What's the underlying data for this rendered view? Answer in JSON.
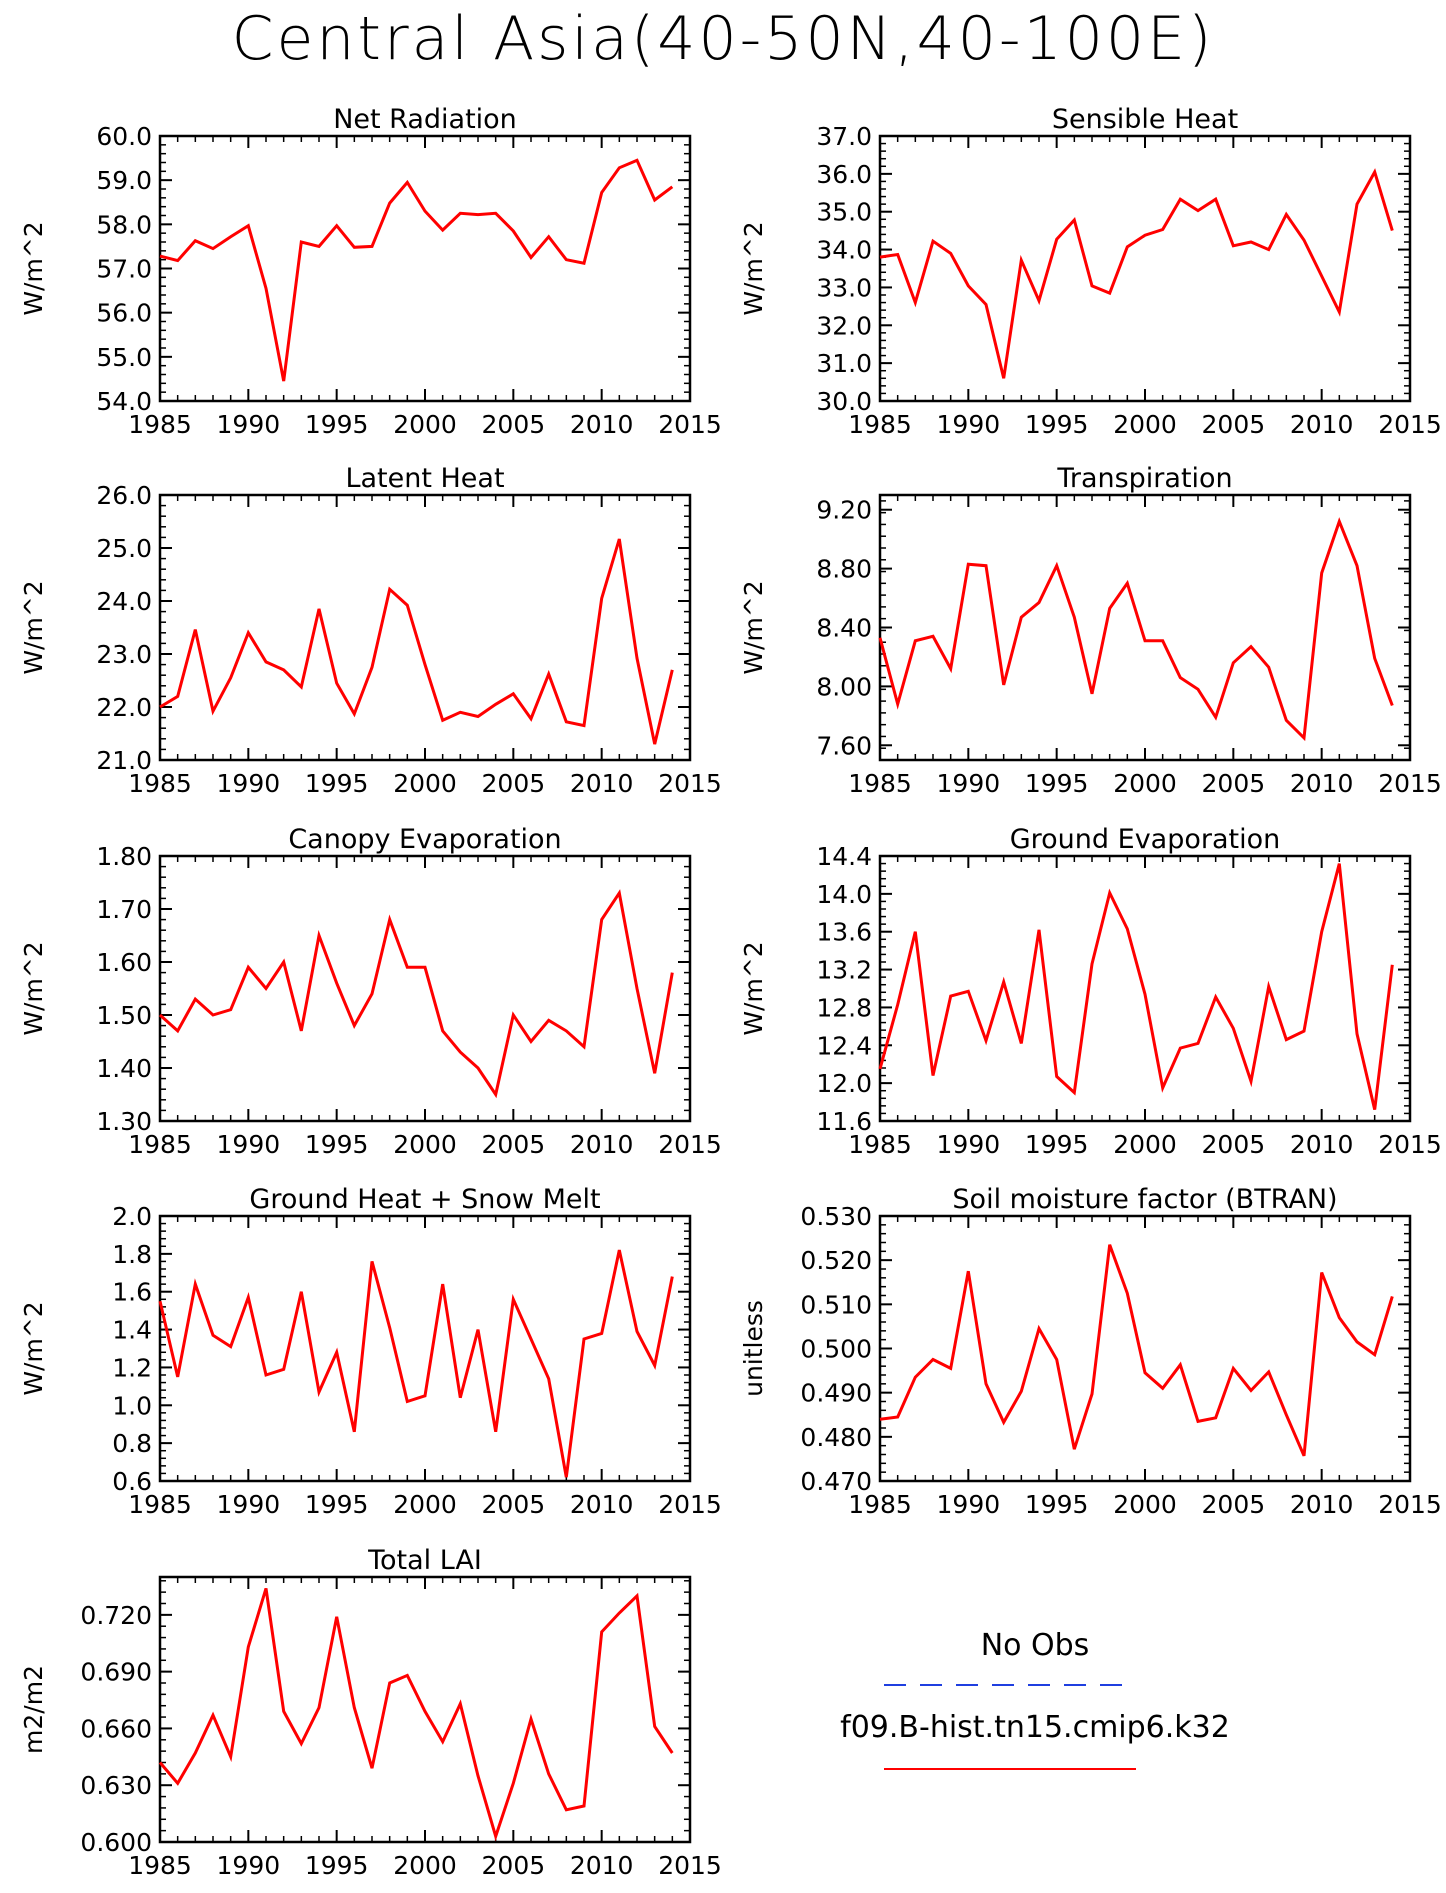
{
  "title": "Central Asia(40-50N,40-100E)",
  "legend": {
    "obs_label": "No Obs",
    "obs_color": "#1f3fe0",
    "model_label": "f09.B-hist.tn15.cmip6.k32",
    "model_color": "#ff0000"
  },
  "line_color": "#ff0000",
  "chart_data": [
    {
      "type": "line",
      "title": "Net Radiation",
      "ylabel": "W/m^2",
      "xlim": [
        1985,
        2015
      ],
      "ylim": [
        54.0,
        60.0
      ],
      "xticks": [
        "1985",
        "1990",
        "1995",
        "2000",
        "2005",
        "2010",
        "2015"
      ],
      "yticks": [
        "54.0",
        "55.0",
        "56.0",
        "57.0",
        "58.0",
        "59.0",
        "60.0"
      ],
      "x": [
        1985,
        1986,
        1987,
        1988,
        1989,
        1990,
        1991,
        1992,
        1993,
        1994,
        1995,
        1996,
        1997,
        1998,
        1999,
        2000,
        2001,
        2002,
        2003,
        2004,
        2005,
        2006,
        2007,
        2008,
        2009,
        2010,
        2011,
        2012,
        2013,
        2014
      ],
      "series": [
        {
          "values": [
            57.28,
            57.18,
            57.63,
            57.45,
            57.72,
            57.97,
            56.55,
            54.45,
            57.6,
            57.5,
            57.97,
            57.48,
            57.5,
            58.48,
            58.95,
            58.3,
            57.87,
            58.25,
            58.22,
            58.25,
            57.85,
            57.25,
            57.72,
            57.2,
            57.12,
            58.72,
            59.28,
            59.45,
            58.55,
            58.85
          ]
        }
      ]
    },
    {
      "type": "line",
      "title": "Sensible Heat",
      "ylabel": "W/m^2",
      "xlim": [
        1985,
        2015
      ],
      "ylim": [
        30.0,
        37.0
      ],
      "xticks": [
        "1985",
        "1990",
        "1995",
        "2000",
        "2005",
        "2010",
        "2015"
      ],
      "yticks": [
        "30.0",
        "31.0",
        "32.0",
        "33.0",
        "34.0",
        "35.0",
        "36.0",
        "37.0"
      ],
      "x": [
        1985,
        1986,
        1987,
        1988,
        1989,
        1990,
        1991,
        1992,
        1993,
        1994,
        1995,
        1996,
        1997,
        1998,
        1999,
        2000,
        2001,
        2002,
        2003,
        2004,
        2005,
        2006,
        2007,
        2008,
        2009,
        2010,
        2011,
        2012,
        2013,
        2014
      ],
      "series": [
        {
          "values": [
            33.8,
            33.87,
            32.6,
            34.22,
            33.9,
            33.04,
            32.55,
            30.6,
            33.72,
            32.65,
            34.27,
            34.78,
            33.04,
            32.85,
            34.07,
            34.38,
            34.53,
            35.33,
            35.03,
            35.33,
            34.1,
            34.2,
            34.0,
            34.93,
            34.25,
            33.3,
            32.35,
            35.2,
            36.05,
            34.5
          ]
        }
      ]
    },
    {
      "type": "line",
      "title": "Latent Heat",
      "ylabel": "W/m^2",
      "xlim": [
        1985,
        2015
      ],
      "ylim": [
        21.0,
        26.0
      ],
      "xticks": [
        "1985",
        "1990",
        "1995",
        "2000",
        "2005",
        "2010",
        "2015"
      ],
      "yticks": [
        "21.0",
        "22.0",
        "23.0",
        "24.0",
        "25.0",
        "26.0"
      ],
      "x": [
        1985,
        1986,
        1987,
        1988,
        1989,
        1990,
        1991,
        1992,
        1993,
        1994,
        1995,
        1996,
        1997,
        1998,
        1999,
        2000,
        2001,
        2002,
        2003,
        2004,
        2005,
        2006,
        2007,
        2008,
        2009,
        2010,
        2011,
        2012,
        2013,
        2014
      ],
      "series": [
        {
          "values": [
            22.0,
            22.2,
            23.46,
            21.92,
            22.55,
            23.4,
            22.85,
            22.7,
            22.38,
            23.85,
            22.45,
            21.87,
            22.75,
            24.22,
            23.92,
            22.8,
            21.75,
            21.9,
            21.82,
            22.05,
            22.25,
            21.78,
            22.62,
            21.72,
            21.65,
            24.05,
            25.17,
            22.92,
            21.3,
            22.7
          ]
        }
      ]
    },
    {
      "type": "line",
      "title": "Transpiration",
      "ylabel": "W/m^2",
      "xlim": [
        1985,
        2015
      ],
      "ylim": [
        7.5,
        9.3
      ],
      "xticks": [
        "1985",
        "1990",
        "1995",
        "2000",
        "2005",
        "2010",
        "2015"
      ],
      "yticks": [
        "7.60",
        "8.00",
        "8.40",
        "8.80",
        "9.20"
      ],
      "x": [
        1985,
        1986,
        1987,
        1988,
        1989,
        1990,
        1991,
        1992,
        1993,
        1994,
        1995,
        1996,
        1997,
        1998,
        1999,
        2000,
        2001,
        2002,
        2003,
        2004,
        2005,
        2006,
        2007,
        2008,
        2009,
        2010,
        2011,
        2012,
        2013,
        2014
      ],
      "series": [
        {
          "values": [
            8.33,
            7.88,
            8.31,
            8.34,
            8.12,
            8.83,
            8.82,
            8.01,
            8.47,
            8.57,
            8.82,
            8.47,
            7.95,
            8.53,
            8.7,
            8.31,
            8.31,
            8.06,
            7.98,
            7.79,
            8.16,
            8.27,
            8.13,
            7.77,
            7.65,
            8.77,
            9.12,
            8.82,
            8.19,
            7.87
          ]
        }
      ]
    },
    {
      "type": "line",
      "title": "Canopy Evaporation",
      "ylabel": "W/m^2",
      "xlim": [
        1985,
        2015
      ],
      "ylim": [
        1.3,
        1.8
      ],
      "xticks": [
        "1985",
        "1990",
        "1995",
        "2000",
        "2005",
        "2010",
        "2015"
      ],
      "yticks": [
        "1.30",
        "1.40",
        "1.50",
        "1.60",
        "1.70",
        "1.80"
      ],
      "x": [
        1985,
        1986,
        1987,
        1988,
        1989,
        1990,
        1991,
        1992,
        1993,
        1994,
        1995,
        1996,
        1997,
        1998,
        1999,
        2000,
        2001,
        2002,
        2003,
        2004,
        2005,
        2006,
        2007,
        2008,
        2009,
        2010,
        2011,
        2012,
        2013,
        2014
      ],
      "series": [
        {
          "values": [
            1.5,
            1.47,
            1.53,
            1.5,
            1.51,
            1.59,
            1.55,
            1.6,
            1.47,
            1.65,
            1.56,
            1.48,
            1.54,
            1.68,
            1.59,
            1.59,
            1.47,
            1.43,
            1.4,
            1.35,
            1.5,
            1.45,
            1.49,
            1.47,
            1.44,
            1.68,
            1.73,
            1.55,
            1.39,
            1.58
          ]
        }
      ]
    },
    {
      "type": "line",
      "title": "Ground Evaporation",
      "ylabel": "W/m^2",
      "xlim": [
        1985,
        2015
      ],
      "ylim": [
        11.6,
        14.4
      ],
      "xticks": [
        "1985",
        "1990",
        "1995",
        "2000",
        "2005",
        "2010",
        "2015"
      ],
      "yticks": [
        "11.6",
        "12.0",
        "12.4",
        "12.8",
        "13.2",
        "13.6",
        "14.0",
        "14.4"
      ],
      "x": [
        1985,
        1986,
        1987,
        1988,
        1989,
        1990,
        1991,
        1992,
        1993,
        1994,
        1995,
        1996,
        1997,
        1998,
        1999,
        2000,
        2001,
        2002,
        2003,
        2004,
        2005,
        2006,
        2007,
        2008,
        2009,
        2010,
        2011,
        2012,
        2013,
        2014
      ],
      "series": [
        {
          "values": [
            12.15,
            12.83,
            13.6,
            12.08,
            12.92,
            12.97,
            12.45,
            13.07,
            12.42,
            13.62,
            12.07,
            11.9,
            13.26,
            14.01,
            13.63,
            12.94,
            11.95,
            12.37,
            12.42,
            12.91,
            12.58,
            12.02,
            13.02,
            12.46,
            12.55,
            13.6,
            14.32,
            12.52,
            11.72,
            13.25
          ]
        }
      ]
    },
    {
      "type": "line",
      "title": "Ground Heat + Snow Melt",
      "ylabel": "W/m^2",
      "xlim": [
        1985,
        2015
      ],
      "ylim": [
        0.6,
        2.0
      ],
      "xticks": [
        "1985",
        "1990",
        "1995",
        "2000",
        "2005",
        "2010",
        "2015"
      ],
      "yticks": [
        "0.6",
        "0.8",
        "1.0",
        "1.2",
        "1.4",
        "1.6",
        "1.8",
        "2.0"
      ],
      "x": [
        1985,
        1986,
        1987,
        1988,
        1989,
        1990,
        1991,
        1992,
        1993,
        1994,
        1995,
        1996,
        1997,
        1998,
        1999,
        2000,
        2001,
        2002,
        2003,
        2004,
        2005,
        2006,
        2007,
        2008,
        2009,
        2010,
        2011,
        2012,
        2013,
        2014
      ],
      "series": [
        {
          "values": [
            1.55,
            1.15,
            1.64,
            1.37,
            1.31,
            1.57,
            1.16,
            1.19,
            1.6,
            1.07,
            1.28,
            0.86,
            1.76,
            1.41,
            1.02,
            1.05,
            1.64,
            1.04,
            1.4,
            0.86,
            1.56,
            1.35,
            1.14,
            0.62,
            1.35,
            1.38,
            1.82,
            1.39,
            1.21,
            1.68
          ]
        }
      ]
    },
    {
      "type": "line",
      "title": "Soil moisture factor (BTRAN)",
      "ylabel": "unitless",
      "xlim": [
        1985,
        2015
      ],
      "ylim": [
        0.47,
        0.53
      ],
      "xticks": [
        "1985",
        "1990",
        "1995",
        "2000",
        "2005",
        "2010",
        "2015"
      ],
      "yticks": [
        "0.470",
        "0.480",
        "0.490",
        "0.500",
        "0.510",
        "0.520",
        "0.530"
      ],
      "x": [
        1985,
        1986,
        1987,
        1988,
        1989,
        1990,
        1991,
        1992,
        1993,
        1994,
        1995,
        1996,
        1997,
        1998,
        1999,
        2000,
        2001,
        2002,
        2003,
        2004,
        2005,
        2006,
        2007,
        2008,
        2009,
        2010,
        2011,
        2012,
        2013,
        2014
      ],
      "series": [
        {
          "values": [
            0.484,
            0.4845,
            0.4935,
            0.4975,
            0.4955,
            0.5175,
            0.492,
            0.4833,
            0.4903,
            0.5045,
            0.4975,
            0.4772,
            0.4897,
            0.5235,
            0.5125,
            0.4945,
            0.491,
            0.4963,
            0.4835,
            0.4843,
            0.4955,
            0.4905,
            0.4947,
            0.485,
            0.4757,
            0.5172,
            0.507,
            0.5015,
            0.4986,
            0.5118
          ]
        }
      ]
    },
    {
      "type": "line",
      "title": "Total LAI",
      "ylabel": "m2/m2",
      "xlim": [
        1985,
        2015
      ],
      "ylim": [
        0.6,
        0.74
      ],
      "xticks": [
        "1985",
        "1990",
        "1995",
        "2000",
        "2005",
        "2010",
        "2015"
      ],
      "yticks": [
        "0.600",
        "0.630",
        "0.660",
        "0.690",
        "0.720"
      ],
      "x": [
        1985,
        1986,
        1987,
        1988,
        1989,
        1990,
        1991,
        1992,
        1993,
        1994,
        1995,
        1996,
        1997,
        1998,
        1999,
        2000,
        2001,
        2002,
        2003,
        2004,
        2005,
        2006,
        2007,
        2008,
        2009,
        2010,
        2011,
        2012,
        2013,
        2014
      ],
      "series": [
        {
          "values": [
            0.642,
            0.631,
            0.647,
            0.667,
            0.645,
            0.703,
            0.734,
            0.669,
            0.652,
            0.671,
            0.719,
            0.671,
            0.639,
            0.684,
            0.688,
            0.669,
            0.653,
            0.673,
            0.635,
            0.603,
            0.631,
            0.665,
            0.636,
            0.617,
            0.619,
            0.711,
            0.721,
            0.73,
            0.661,
            0.647
          ]
        }
      ]
    }
  ]
}
